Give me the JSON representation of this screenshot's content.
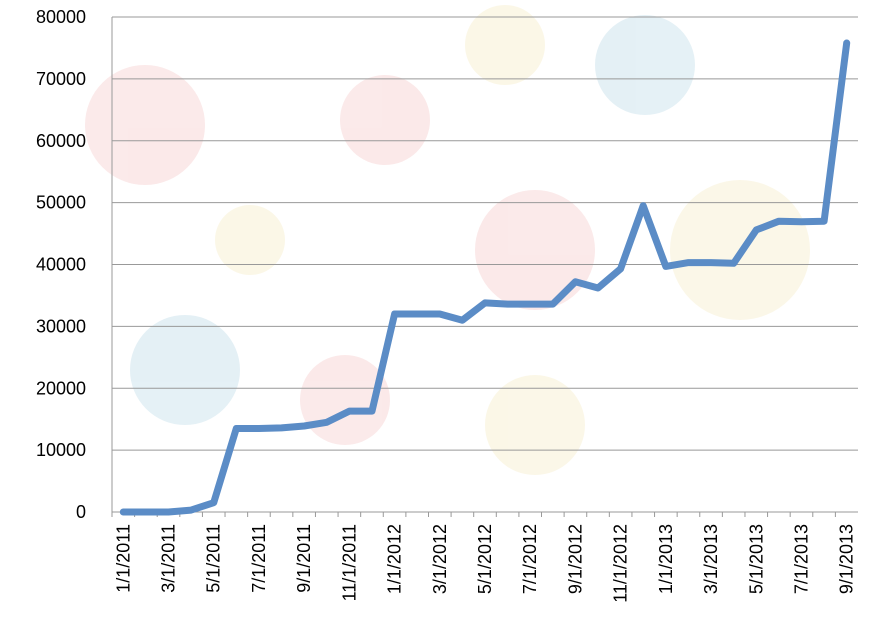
{
  "chart_data": {
    "type": "line",
    "categories": [
      "1/1/2011",
      null,
      "3/1/2011",
      null,
      "5/1/2011",
      null,
      "7/1/2011",
      null,
      "9/1/2011",
      null,
      "11/1/2011",
      null,
      "1/1/2012",
      null,
      "3/1/2012",
      null,
      "5/1/2012",
      null,
      "7/1/2012",
      null,
      "9/1/2012",
      null,
      "11/1/2012",
      null,
      "1/1/2013",
      null,
      "3/1/2013",
      null,
      "5/1/2013",
      null,
      "7/1/2013",
      null,
      "9/1/2013"
    ],
    "values": [
      0,
      0,
      0,
      300,
      1500,
      13500,
      13500,
      13600,
      13900,
      14500,
      16300,
      16300,
      32000,
      32000,
      32000,
      31000,
      33800,
      33600,
      33600,
      33600,
      37200,
      36200,
      39300,
      49500,
      39700,
      40300,
      40300,
      40200,
      45600,
      47000,
      46900,
      47000,
      75800
    ],
    "color": "#5b8cc6",
    "ylim": [
      0,
      80000
    ],
    "yticks": [
      0,
      10000,
      20000,
      30000,
      40000,
      50000,
      60000,
      70000,
      80000
    ],
    "grid": true
  }
}
